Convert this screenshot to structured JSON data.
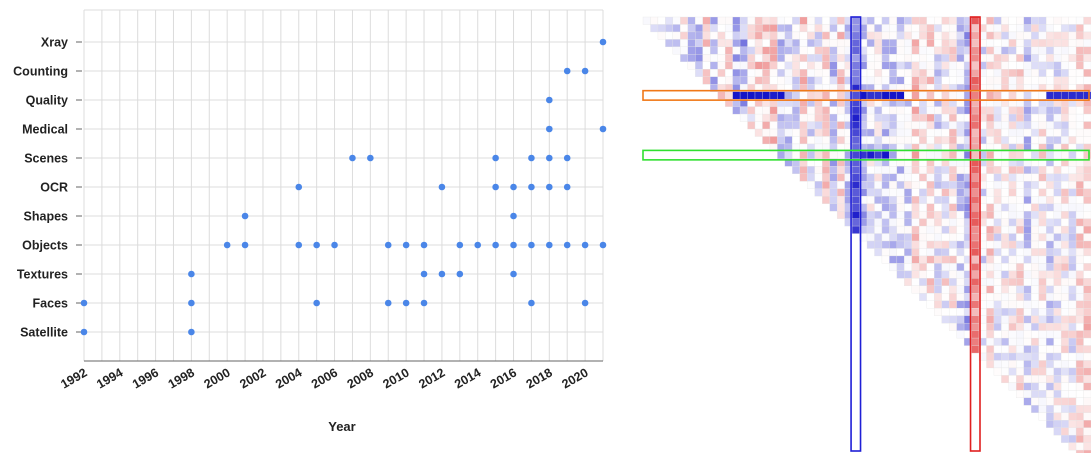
{
  "chart_data": [
    {
      "type": "scatter",
      "title": "",
      "xlabel": "Year",
      "ylabel": "",
      "xlim": [
        1992,
        2021
      ],
      "x_ticks": [
        1992,
        1994,
        1996,
        1998,
        2000,
        2002,
        2004,
        2006,
        2008,
        2010,
        2012,
        2014,
        2016,
        2018,
        2020
      ],
      "categories": [
        "Satellite",
        "Faces",
        "Textures",
        "Objects",
        "Shapes",
        "OCR",
        "Scenes",
        "Medical",
        "Quality",
        "Counting",
        "Xray"
      ],
      "grid": true,
      "point_color": "#4a86e8",
      "points": [
        {
          "x": 1992,
          "y": "Satellite"
        },
        {
          "x": 1992,
          "y": "Faces"
        },
        {
          "x": 1998,
          "y": "Satellite"
        },
        {
          "x": 1998,
          "y": "Faces"
        },
        {
          "x": 1998,
          "y": "Textures"
        },
        {
          "x": 2000,
          "y": "Objects"
        },
        {
          "x": 2001,
          "y": "Objects"
        },
        {
          "x": 2001,
          "y": "Shapes"
        },
        {
          "x": 2004,
          "y": "Objects"
        },
        {
          "x": 2004,
          "y": "OCR"
        },
        {
          "x": 2005,
          "y": "Faces"
        },
        {
          "x": 2005,
          "y": "Objects"
        },
        {
          "x": 2006,
          "y": "Objects"
        },
        {
          "x": 2007,
          "y": "Scenes"
        },
        {
          "x": 2008,
          "y": "Scenes"
        },
        {
          "x": 2009,
          "y": "Faces"
        },
        {
          "x": 2009,
          "y": "Objects"
        },
        {
          "x": 2010,
          "y": "Faces"
        },
        {
          "x": 2010,
          "y": "Objects"
        },
        {
          "x": 2011,
          "y": "Faces"
        },
        {
          "x": 2011,
          "y": "Textures"
        },
        {
          "x": 2011,
          "y": "Objects"
        },
        {
          "x": 2012,
          "y": "Textures"
        },
        {
          "x": 2012,
          "y": "OCR"
        },
        {
          "x": 2013,
          "y": "Textures"
        },
        {
          "x": 2013,
          "y": "Objects"
        },
        {
          "x": 2014,
          "y": "Objects"
        },
        {
          "x": 2015,
          "y": "Objects"
        },
        {
          "x": 2015,
          "y": "OCR"
        },
        {
          "x": 2015,
          "y": "Scenes"
        },
        {
          "x": 2016,
          "y": "Textures"
        },
        {
          "x": 2016,
          "y": "Objects"
        },
        {
          "x": 2016,
          "y": "Shapes"
        },
        {
          "x": 2016,
          "y": "OCR"
        },
        {
          "x": 2017,
          "y": "Faces"
        },
        {
          "x": 2017,
          "y": "Objects"
        },
        {
          "x": 2017,
          "y": "OCR"
        },
        {
          "x": 2017,
          "y": "Scenes"
        },
        {
          "x": 2018,
          "y": "Objects"
        },
        {
          "x": 2018,
          "y": "OCR"
        },
        {
          "x": 2018,
          "y": "Scenes"
        },
        {
          "x": 2018,
          "y": "Medical"
        },
        {
          "x": 2018,
          "y": "Quality"
        },
        {
          "x": 2019,
          "y": "Objects"
        },
        {
          "x": 2019,
          "y": "OCR"
        },
        {
          "x": 2019,
          "y": "Scenes"
        },
        {
          "x": 2019,
          "y": "Counting"
        },
        {
          "x": 2020,
          "y": "Faces"
        },
        {
          "x": 2020,
          "y": "Objects"
        },
        {
          "x": 2020,
          "y": "Counting"
        },
        {
          "x": 2021,
          "y": "Objects"
        },
        {
          "x": 2021,
          "y": "Medical"
        },
        {
          "x": 2021,
          "y": "Xray"
        }
      ]
    },
    {
      "type": "heatmap",
      "shape": "lower-triangular",
      "matrix_size": 60,
      "color_scale": {
        "negative": "#e03030",
        "zero": "#ffffff",
        "positive": "#2020c8"
      },
      "highlights": [
        {
          "orientation": "vertical",
          "index": 28,
          "color": "#1f1fd6"
        },
        {
          "orientation": "vertical",
          "index": 44,
          "color": "#e02020"
        },
        {
          "orientation": "horizontal",
          "index": 10,
          "color": "#f07818"
        },
        {
          "orientation": "horizontal",
          "index": 18,
          "color": "#30e030"
        }
      ]
    }
  ]
}
